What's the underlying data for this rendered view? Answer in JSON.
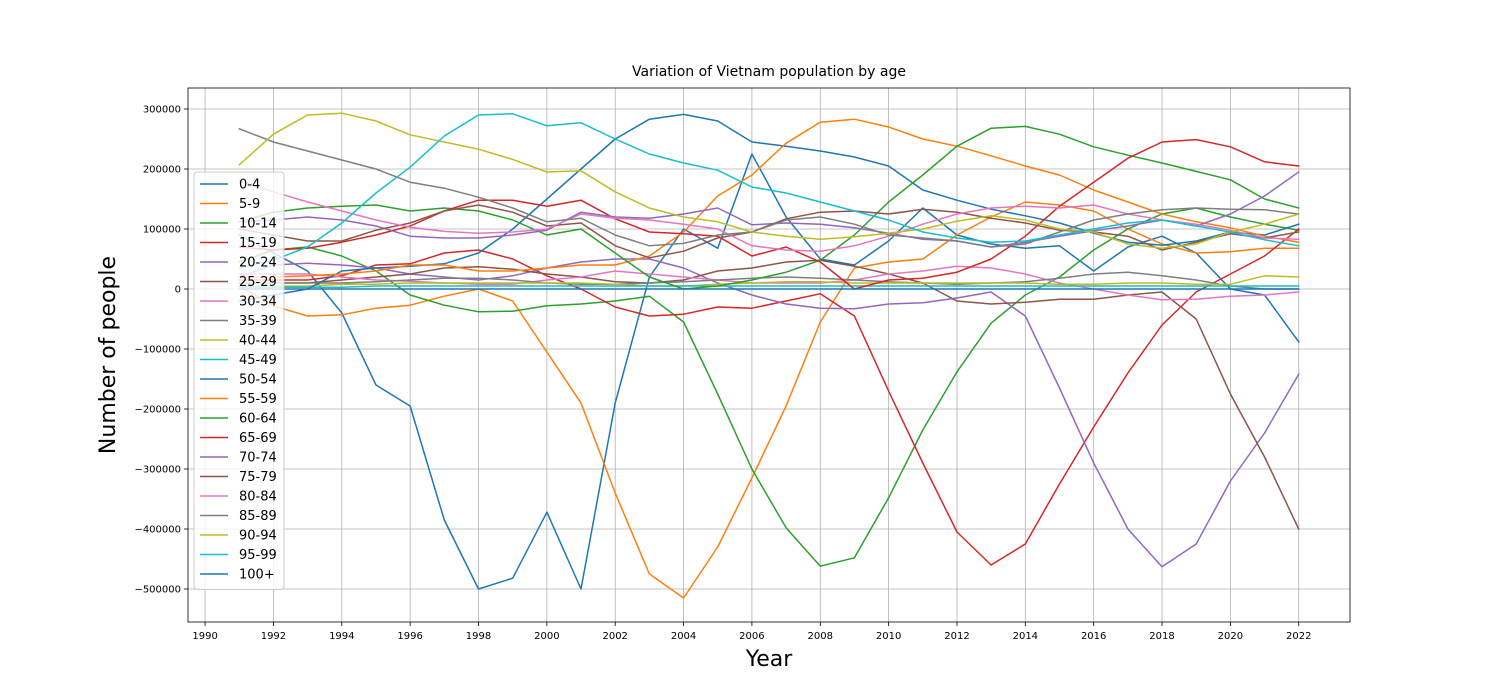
{
  "chart_data": {
    "type": "line",
    "title": "Variation of Vietnam population by age",
    "xlabel": "Year",
    "ylabel": "Number of people",
    "xlim": [
      1989.5,
      2023.5
    ],
    "ylim": [
      -555000,
      335000
    ],
    "x_ticks": [
      1990,
      1992,
      1994,
      1996,
      1998,
      2000,
      2002,
      2004,
      2006,
      2008,
      2010,
      2012,
      2014,
      2016,
      2018,
      2020,
      2022
    ],
    "y_ticks": [
      -500000,
      -400000,
      -300000,
      -200000,
      -100000,
      0,
      100000,
      200000,
      300000
    ],
    "grid": true,
    "legend_position": "center-left",
    "x": [
      1991,
      1992,
      1993,
      1994,
      1995,
      1996,
      1997,
      1998,
      1999,
      2000,
      2001,
      2002,
      2003,
      2004,
      2005,
      2006,
      2007,
      2008,
      2009,
      2010,
      2011,
      2012,
      2013,
      2014,
      2015,
      2016,
      2017,
      2018,
      2019,
      2020,
      2021,
      2022
    ],
    "series": [
      {
        "name": "0-4",
        "color": "#1f77b4",
        "values": [
          90000,
          60000,
          30000,
          -40000,
          -160000,
          -195000,
          -385000,
          -500000,
          -482000,
          -372000,
          -500000,
          -190000,
          20000,
          100000,
          68000,
          225000,
          120000,
          50000,
          40000,
          80000,
          135000,
          90000,
          75000,
          68000,
          72000,
          30000,
          70000,
          88000,
          60000,
          0,
          -10000,
          -88000
        ]
      },
      {
        "name": "5-9",
        "color": "#ff7f0e",
        "values": [
          5000,
          -28000,
          -45000,
          -43000,
          -32000,
          -27000,
          -12000,
          0,
          -20000,
          -105000,
          -190000,
          -340000,
          -475000,
          -515000,
          -430000,
          -315000,
          -195000,
          -55000,
          35000,
          45000,
          50000,
          90000,
          120000,
          145000,
          140000,
          130000,
          100000,
          75000,
          60000,
          62000,
          68000,
          68000
        ]
      },
      {
        "name": "10-14",
        "color": "#2ca02c",
        "values": [
          45000,
          65000,
          70000,
          55000,
          30000,
          -10000,
          -27000,
          -38000,
          -37000,
          -28000,
          -25000,
          -20000,
          -12000,
          -55000,
          -175000,
          -300000,
          -398000,
          -462000,
          -448000,
          -348000,
          -235000,
          -138000,
          -57000,
          -10000,
          20000,
          65000,
          100000,
          125000,
          135000,
          120000,
          108000,
          98000
        ]
      },
      {
        "name": "15-19",
        "color": "#d62728",
        "values": [
          15000,
          15000,
          15000,
          22000,
          40000,
          42000,
          60000,
          65000,
          50000,
          22000,
          0,
          -30000,
          -45000,
          -42000,
          -30000,
          -32000,
          -20000,
          -8000,
          -45000,
          -170000,
          -290000,
          -405000,
          -460000,
          -425000,
          -325000,
          -230000,
          -140000,
          -60000,
          -5000,
          25000,
          55000,
          100000
        ]
      },
      {
        "name": "20-24",
        "color": "#9467bd",
        "values": [
          20000,
          40000,
          43000,
          40000,
          35000,
          25000,
          20000,
          15000,
          22000,
          35000,
          45000,
          50000,
          50000,
          35000,
          10000,
          -10000,
          -25000,
          -32000,
          -33000,
          -25000,
          -23000,
          -15000,
          -5000,
          -45000,
          -165000,
          -290000,
          -400000,
          -463000,
          -425000,
          -320000,
          -240000,
          -142000
        ]
      },
      {
        "name": "25-29",
        "color": "#8c564b",
        "values": [
          10000,
          10000,
          10000,
          15000,
          20000,
          25000,
          35000,
          37000,
          33000,
          25000,
          20000,
          12000,
          10000,
          15000,
          30000,
          35000,
          45000,
          48000,
          38000,
          25000,
          10000,
          -20000,
          -25000,
          -22000,
          -17000,
          -17000,
          -10000,
          -5000,
          -50000,
          -175000,
          -280000,
          -400000
        ]
      },
      {
        "name": "30-34",
        "color": "#e377c2",
        "values": [
          25000,
          25000,
          25000,
          20000,
          15000,
          13000,
          10000,
          8000,
          8000,
          15000,
          20000,
          30000,
          25000,
          20000,
          15000,
          10000,
          10000,
          10000,
          15000,
          25000,
          30000,
          38000,
          35000,
          25000,
          10000,
          0,
          -10000,
          -18000,
          -17000,
          -12000,
          -10000,
          -5000
        ]
      },
      {
        "name": "35-39",
        "color": "#7f7f7f",
        "values": [
          10000,
          10000,
          10000,
          10000,
          12000,
          15000,
          18000,
          18000,
          15000,
          10000,
          8000,
          8000,
          10000,
          12000,
          15000,
          18000,
          20000,
          18000,
          15000,
          12000,
          10000,
          8000,
          10000,
          12000,
          18000,
          25000,
          28000,
          22000,
          15000,
          5000,
          0,
          0
        ]
      },
      {
        "name": "40-44",
        "color": "#bcbd22",
        "values": [
          5000,
          5000,
          5000,
          8000,
          8000,
          10000,
          10000,
          10000,
          10000,
          10000,
          10000,
          8000,
          5000,
          5000,
          8000,
          10000,
          12000,
          12000,
          10000,
          10000,
          10000,
          10000,
          10000,
          10000,
          8000,
          8000,
          10000,
          10000,
          8000,
          8000,
          22000,
          20000
        ]
      },
      {
        "name": "45-49",
        "color": "#17becf",
        "values": [
          3000,
          3000,
          3000,
          3000,
          5000,
          5000,
          5000,
          5000,
          5000,
          5000,
          5000,
          5000,
          5000,
          5000,
          5000,
          5000,
          5000,
          5000,
          5000,
          5000,
          5000,
          5000,
          5000,
          5000,
          5000,
          5000,
          5000,
          5000,
          5000,
          5000,
          5000,
          5000
        ]
      },
      {
        "name": "50-54",
        "color": "#1f77b4",
        "values": [
          -20000,
          -10000,
          0,
          30000,
          35000,
          38000,
          42000,
          60000,
          100000,
          150000,
          200000,
          250000,
          283000,
          291000,
          280000,
          245000,
          238000,
          230000,
          220000,
          205000,
          165000,
          148000,
          133000,
          122000,
          110000,
          93000,
          78000,
          73000,
          80000,
          95000,
          90000,
          108000
        ]
      },
      {
        "name": "55-59",
        "color": "#ff7f0e",
        "values": [
          20000,
          20000,
          22000,
          25000,
          30000,
          40000,
          40000,
          30000,
          30000,
          35000,
          40000,
          40000,
          55000,
          95000,
          155000,
          190000,
          243000,
          278000,
          283000,
          270000,
          250000,
          238000,
          222000,
          205000,
          190000,
          165000,
          145000,
          125000,
          112000,
          102000,
          88000,
          78000
        ]
      },
      {
        "name": "60-64",
        "color": "#2ca02c",
        "values": [
          112000,
          128000,
          135000,
          138000,
          140000,
          130000,
          135000,
          130000,
          115000,
          90000,
          100000,
          60000,
          20000,
          0,
          5000,
          15000,
          28000,
          48000,
          90000,
          145000,
          190000,
          238000,
          268000,
          271000,
          258000,
          237000,
          223000,
          210000,
          196000,
          182000,
          150000,
          135000
        ]
      },
      {
        "name": "65-69",
        "color": "#d62728",
        "values": [
          70000,
          65000,
          68000,
          78000,
          90000,
          105000,
          130000,
          148000,
          148000,
          138000,
          148000,
          117000,
          95000,
          92000,
          88000,
          55000,
          70000,
          45000,
          0,
          15000,
          18000,
          28000,
          50000,
          88000,
          138000,
          178000,
          218000,
          245000,
          249000,
          237000,
          212000,
          205000
        ]
      },
      {
        "name": "70-74",
        "color": "#9467bd",
        "values": [
          112000,
          115000,
          120000,
          115000,
          105000,
          88000,
          85000,
          85000,
          90000,
          98000,
          128000,
          120000,
          118000,
          125000,
          135000,
          107000,
          110000,
          108000,
          102000,
          93000,
          83000,
          80000,
          70000,
          78000,
          88000,
          97000,
          105000,
          115000,
          105000,
          125000,
          155000,
          195000
        ]
      },
      {
        "name": "75-79",
        "color": "#8c564b",
        "values": [
          100000,
          90000,
          80000,
          80000,
          98000,
          110000,
          130000,
          140000,
          128000,
          105000,
          110000,
          72000,
          52000,
          63000,
          85000,
          95000,
          117000,
          128000,
          130000,
          125000,
          133000,
          128000,
          118000,
          110000,
          98000,
          95000,
          88000,
          65000,
          78000,
          92000,
          85000,
          95000
        ]
      },
      {
        "name": "80-84",
        "color": "#e377c2",
        "values": [
          180000,
          162000,
          145000,
          130000,
          115000,
          103000,
          96000,
          93000,
          95000,
          100000,
          125000,
          118000,
          115000,
          108000,
          100000,
          72000,
          65000,
          63000,
          72000,
          88000,
          108000,
          125000,
          135000,
          138000,
          135000,
          140000,
          125000,
          115000,
          108000,
          98000,
          85000,
          83000
        ]
      },
      {
        "name": "85-89",
        "color": "#7f7f7f",
        "values": [
          267000,
          245000,
          230000,
          215000,
          200000,
          178000,
          168000,
          153000,
          135000,
          112000,
          118000,
          90000,
          72000,
          76000,
          90000,
          95000,
          115000,
          120000,
          108000,
          90000,
          85000,
          80000,
          70000,
          75000,
          95000,
          115000,
          125000,
          132000,
          135000,
          133000,
          132000,
          125000
        ]
      },
      {
        "name": "90-94",
        "color": "#bcbd22",
        "values": [
          207000,
          258000,
          290000,
          293000,
          280000,
          257000,
          245000,
          233000,
          216000,
          195000,
          197000,
          162000,
          135000,
          120000,
          112000,
          95000,
          88000,
          83000,
          87000,
          93000,
          100000,
          113000,
          122000,
          115000,
          100000,
          95000,
          75000,
          68000,
          75000,
          95000,
          108000,
          125000
        ]
      },
      {
        "name": "95-99",
        "color": "#17becf",
        "values": [
          35000,
          48000,
          70000,
          110000,
          160000,
          203000,
          255000,
          290000,
          292000,
          272000,
          277000,
          250000,
          225000,
          210000,
          198000,
          170000,
          160000,
          145000,
          130000,
          115000,
          95000,
          85000,
          78000,
          80000,
          90000,
          100000,
          110000,
          115000,
          105000,
          95000,
          82000,
          72000
        ]
      },
      {
        "name": "100+",
        "color": "#1f77b4",
        "values": [
          0,
          0,
          0,
          0,
          0,
          0,
          0,
          0,
          0,
          0,
          0,
          0,
          0,
          0,
          0,
          0,
          0,
          0,
          0,
          0,
          0,
          0,
          0,
          0,
          0,
          0,
          0,
          0,
          0,
          0,
          0,
          0
        ]
      }
    ]
  }
}
